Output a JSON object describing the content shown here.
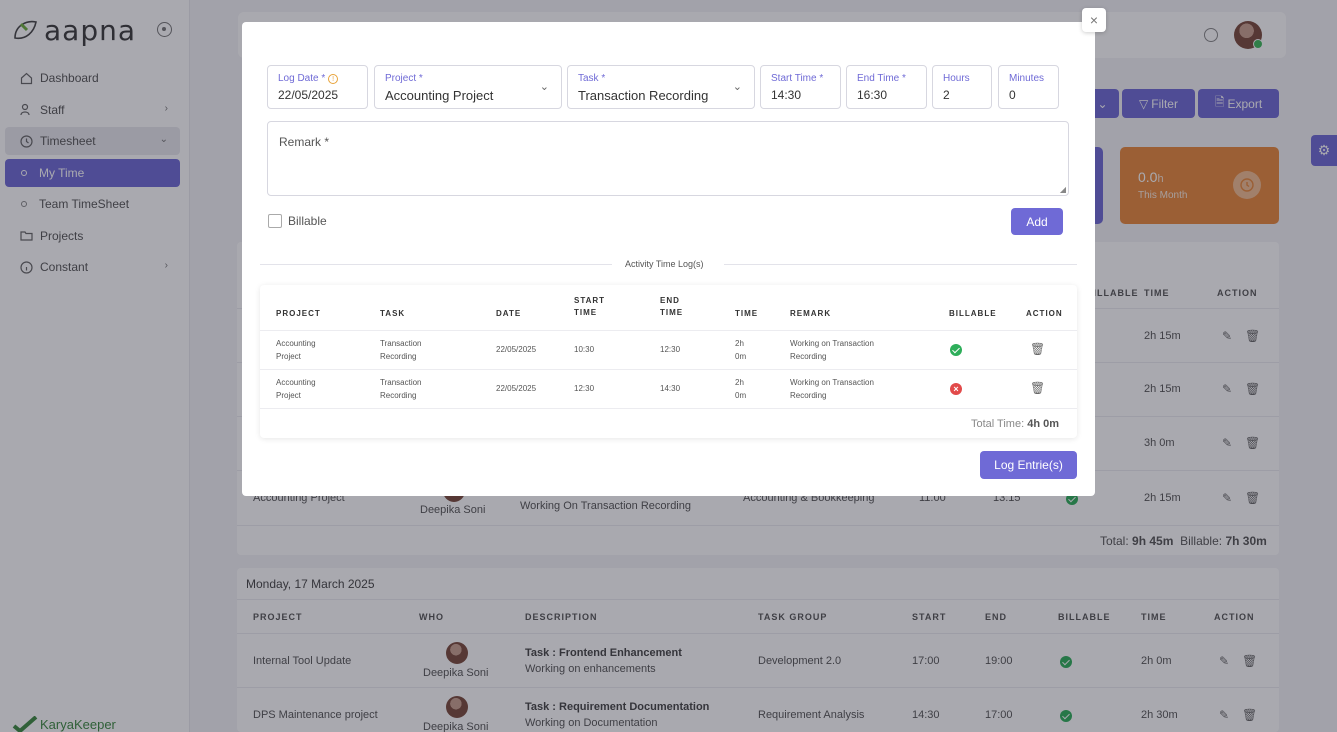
{
  "brand": {
    "name": "aapna",
    "footer": "KaryaKeeper"
  },
  "sidebar": {
    "items": [
      {
        "label": "Dashboard"
      },
      {
        "label": "Staff"
      },
      {
        "label": "Timesheet"
      },
      {
        "label": "My Time"
      },
      {
        "label": "Team TimeSheet"
      },
      {
        "label": "Projects"
      },
      {
        "label": "Constant"
      }
    ]
  },
  "toolbar": {
    "filter": "Filter",
    "export": "Export"
  },
  "stats": {
    "month_value": "0.0",
    "month_unit": "h",
    "month_label": "This Month"
  },
  "bg_table1": {
    "headers": {
      "billable": "BILLABLE",
      "time": "TIME",
      "action": "ACTION"
    },
    "rows": [
      {
        "time": "2h 15m"
      },
      {
        "time": "2h 15m"
      },
      {
        "time": "3h 0m"
      },
      {
        "project": "Accounting Project",
        "who": "Deepika Soni",
        "desc": "Working On Transaction Recording",
        "group": "Accounting & Bookkeeping",
        "start": "11:00",
        "end": "13:15",
        "time": "2h 15m"
      }
    ],
    "total_label": "Total:",
    "total": "9h 45m",
    "billable_label": "Billable:",
    "billable": "7h 30m"
  },
  "bg_table2": {
    "date": "Monday, 17 March 2025",
    "headers": {
      "project": "PROJECT",
      "who": "WHO",
      "description": "DESCRIPTION",
      "task_group": "TASK GROUP",
      "start": "START",
      "end": "END",
      "billable": "BILLABLE",
      "time": "TIME",
      "action": "ACTION"
    },
    "rows": [
      {
        "project": "Internal Tool Update",
        "who": "Deepika Soni",
        "task": "Task : Frontend Enhancement",
        "desc": "Working on enhancements",
        "group": "Development 2.0",
        "start": "17:00",
        "end": "19:00",
        "time": "2h 0m"
      },
      {
        "project": "DPS Maintenance project",
        "who": "Deepika Soni",
        "task": "Task : Requirement Documentation",
        "desc": "Working on Documentation",
        "group": "Requirement Analysis",
        "start": "14:30",
        "end": "17:00",
        "time": "2h 30m"
      }
    ]
  },
  "modal": {
    "close": "×",
    "fields": {
      "log_date": {
        "label": "Log Date *",
        "value": "22/05/2025"
      },
      "project": {
        "label": "Project *",
        "value": "Accounting Project"
      },
      "task": {
        "label": "Task *",
        "value": "Transaction Recording"
      },
      "start_time": {
        "label": "Start Time *",
        "value": "14:30"
      },
      "end_time": {
        "label": "End Time *",
        "value": "16:30"
      },
      "hours": {
        "label": "Hours",
        "value": "2"
      },
      "minutes": {
        "label": "Minutes",
        "value": "0"
      }
    },
    "remark_label": "Remark *",
    "billable_label": "Billable",
    "add_label": "Add",
    "section_title": "Activity Time Log(s)",
    "log_headers": {
      "project": "PROJECT",
      "task": "TASK",
      "date": "DATE",
      "start_time": "START TIME",
      "end_time": "END TIME",
      "time": "TIME",
      "remark": "REMARK",
      "billable": "BILLABLE",
      "action": "ACTION"
    },
    "log_rows": [
      {
        "project": "Accounting Project",
        "task": "Transaction Recording",
        "date": "22/05/2025",
        "start": "10:30",
        "end": "12:30",
        "time": "2h 0m",
        "remark": "Working on Transaction Recording",
        "billable": true
      },
      {
        "project": "Accounting Project",
        "task": "Transaction Recording",
        "date": "22/05/2025",
        "start": "12:30",
        "end": "14:30",
        "time": "2h 0m",
        "remark": "Working on Transaction Recording",
        "billable": false
      }
    ],
    "total_label": "Total Time:",
    "total_value": "4h 0m",
    "log_button": "Log Entrie(s)"
  },
  "colors": {
    "accent": "#6f6ad6",
    "success": "#2eae5a",
    "danger": "#e24a4a",
    "orange": "#e8883a"
  }
}
